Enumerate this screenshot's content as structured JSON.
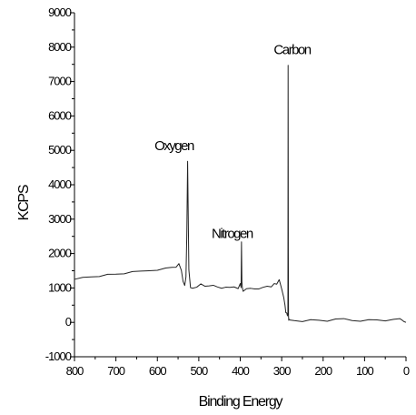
{
  "chart_data": {
    "type": "line",
    "title": "",
    "xlabel": "Binding Energy",
    "ylabel": "KCPS",
    "xlim": [
      800,
      0
    ],
    "ylim": [
      -1000,
      9000
    ],
    "x_reversed": true,
    "grid": false,
    "xticks": [
      800,
      700,
      600,
      500,
      400,
      300,
      200,
      100,
      0
    ],
    "yticks": [
      -1000,
      0,
      1000,
      2000,
      3000,
      4000,
      5000,
      6000,
      7000,
      8000,
      9000
    ],
    "series": [
      {
        "values_x": [
          800,
          780,
          760,
          740,
          720,
          700,
          680,
          660,
          640,
          620,
          600,
          580,
          565,
          555,
          548,
          542,
          538,
          534,
          531,
          529,
          527,
          524,
          520,
          515,
          505,
          495,
          485,
          475,
          465,
          455,
          445,
          435,
          425,
          415,
          405,
          400,
          398,
          397,
          396,
          395,
          393,
          390,
          385,
          375,
          365,
          355,
          345,
          335,
          325,
          318,
          312,
          306,
          300,
          295,
          292,
          290,
          288,
          286,
          285,
          284.5,
          284,
          283.5,
          283,
          282,
          280,
          270,
          250,
          230,
          210,
          190,
          170,
          150,
          130,
          110,
          90,
          70,
          50,
          30,
          15,
          10,
          5,
          0
        ],
        "values_y": [
          1250,
          1300,
          1330,
          1360,
          1380,
          1400,
          1430,
          1450,
          1480,
          1510,
          1540,
          1560,
          1600,
          1620,
          1680,
          1500,
          1200,
          1100,
          1300,
          2500,
          4700,
          1500,
          1000,
          1000,
          1050,
          1100,
          1050,
          1080,
          1050,
          1020,
          1000,
          1050,
          1000,
          1030,
          1000,
          1100,
          1000,
          2350,
          1200,
          1000,
          900,
          950,
          950,
          980,
          980,
          1000,
          1000,
          1050,
          1050,
          1100,
          1100,
          1250,
          1000,
          700,
          500,
          300,
          250,
          180,
          300,
          7500,
          2000,
          200,
          80,
          60,
          60,
          60,
          50,
          60,
          60,
          50,
          70,
          100,
          60,
          60,
          60,
          70,
          60,
          60,
          100,
          80,
          50,
          0
        ]
      }
    ],
    "annotations": [
      {
        "text": "Carbon",
        "x": 275,
        "y": 7800
      },
      {
        "text": "Oxygen",
        "x": 560,
        "y": 5000
      },
      {
        "text": "Nitrogen",
        "x": 420,
        "y": 2450
      }
    ]
  }
}
